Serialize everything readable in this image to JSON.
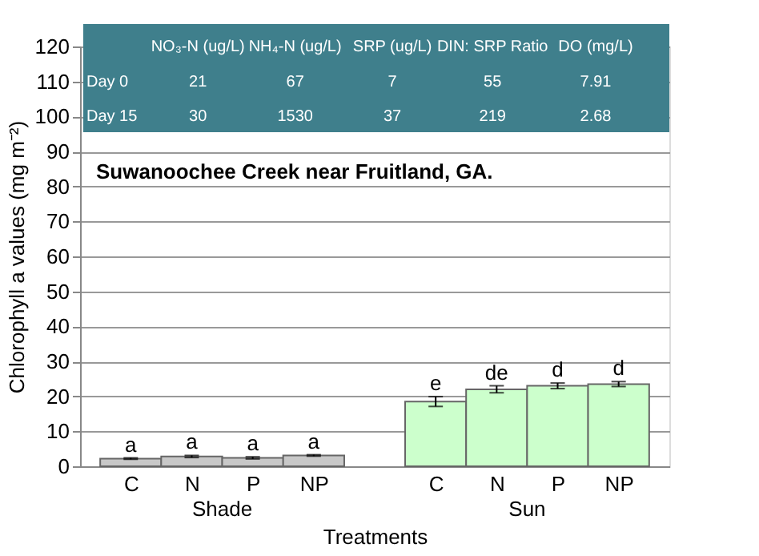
{
  "chart_data": {
    "type": "bar",
    "title": "Suwanoochee Creek near Fruitland, GA.",
    "xlabel": "Treatments",
    "ylabel": "Chlorophyll a values (mg m⁻²)",
    "categories": [
      "C",
      "N",
      "P",
      "NP",
      null,
      "C",
      "N",
      "P",
      "NP"
    ],
    "values": [
      2.2,
      2.8,
      2.4,
      3.1,
      null,
      18.5,
      22.0,
      23.0,
      23.5
    ],
    "errors": [
      0.2,
      0.3,
      0.3,
      0.2,
      null,
      1.4,
      1.0,
      0.8,
      0.7
    ],
    "colors": [
      "#c8c8c8",
      "#c8c8c8",
      "#c8c8c8",
      "#c8c8c8",
      "#ffffff",
      "#ccffcc",
      "#ccffcc",
      "#ccffcc",
      "#ccffcc"
    ],
    "value_labels": [
      "a",
      "a",
      "a",
      "a",
      null,
      "e",
      "de",
      "d",
      "d"
    ],
    "ylim": [
      0,
      120
    ],
    "yticks": [
      0,
      10,
      20,
      30,
      40,
      50,
      60,
      70,
      80,
      90,
      100,
      110,
      120
    ],
    "grid": "y",
    "annotations": [
      "NO₃-N (ug/L)",
      "NH₄-N (ug/L)",
      "SRP (ug/L)",
      "DIN: SRP Ratio",
      "DO (mg/L)",
      "Day 0",
      "21",
      "67",
      "7",
      "55",
      "7.91",
      "Day 15",
      "30",
      "1530",
      "37",
      "219",
      "2.68",
      "Shade",
      "Sun"
    ]
  }
}
